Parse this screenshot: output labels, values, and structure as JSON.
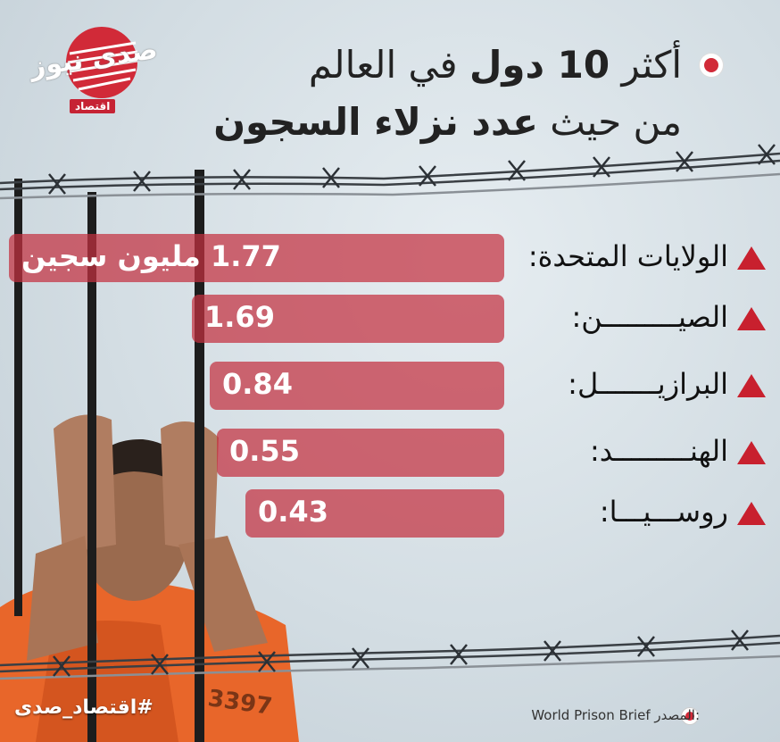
{
  "logo": {
    "name": "صدى نيوز",
    "tag": "اقتصاد"
  },
  "title": {
    "line1_prefix": "أكثر",
    "line1_bold": "10 دول",
    "line1_suffix": "في العالم",
    "line2_prefix": "من حيث",
    "line2_bold": "عدد نزلاء السجون"
  },
  "colors": {
    "accent": "#c8202e",
    "bar": "#c43040",
    "background": "#d3dde3"
  },
  "chart_data": {
    "type": "bar",
    "orientation": "horizontal",
    "categories": [
      "الولايات المتحدة:",
      "الصيـــــــــن:",
      "البرازيـــــــل:",
      "الهنـــــــــد:",
      "روســـيـــا:"
    ],
    "values": [
      1.77,
      1.69,
      0.84,
      0.55,
      0.43
    ],
    "labels": [
      "1.77 مليون سجين",
      "1.69",
      "0.84",
      "0.55",
      "0.43"
    ],
    "unit": "مليون سجين"
  },
  "footer": {
    "hashtag": "#اقتصاد_صدى",
    "source_label": "المصدر:",
    "source_value": "World Prison Brief"
  }
}
